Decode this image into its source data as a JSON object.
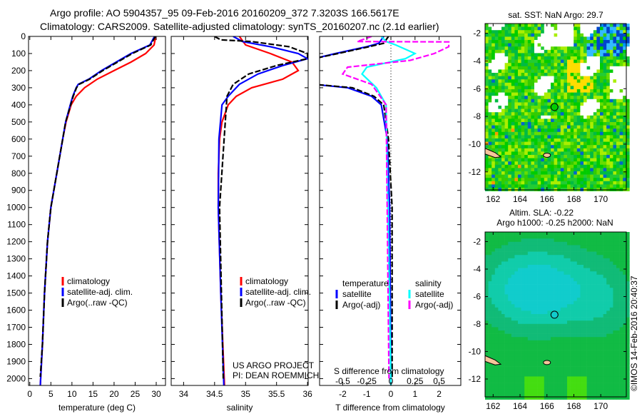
{
  "chart_data": {
    "title_line1": "Argo profile: AO 5904357_95 09-Feb-2016 20160209_372 7.3203S 166.5617E",
    "title_line2": "Climatology: CARS2009. Satellite-adjusted climatology: synTS_20160207.nc (2.1d earlier)",
    "depth_axis": {
      "ylim": [
        0,
        2040
      ],
      "ticks": [
        0,
        100,
        200,
        300,
        400,
        500,
        600,
        700,
        800,
        900,
        1000,
        1100,
        1200,
        1300,
        1400,
        1500,
        1600,
        1700,
        1800,
        1900,
        2000
      ]
    },
    "colors": {
      "climatology": "#ff0000",
      "satellite": "#0000ff",
      "argo": "#000000",
      "sat_s": "#00ffff",
      "argo_s": "#ff00ff"
    },
    "panels": [
      {
        "type": "line",
        "xlabel": "temperature (deg C)",
        "xlim": [
          -0.3,
          32.2
        ],
        "xticks": [
          0,
          5,
          10,
          15,
          20,
          25,
          30
        ],
        "legend": [
          "climatology",
          "satellite-adj. clim.",
          "Argo(..raw -QC)"
        ],
        "series": [
          {
            "name": "climatology",
            "color": "#ff0000",
            "dash": false,
            "points": [
              [
                0,
                29.9
              ],
              [
                50,
                29.5
              ],
              [
                100,
                27.5
              ],
              [
                150,
                24
              ],
              [
                200,
                20
              ],
              [
                250,
                16
              ],
              [
                300,
                13
              ],
              [
                350,
                11
              ],
              [
                400,
                9.8
              ],
              [
                500,
                8.6
              ],
              [
                600,
                7.8
              ],
              [
                800,
                6.4
              ],
              [
                1000,
                5
              ],
              [
                1200,
                4.2
              ],
              [
                1500,
                3.5
              ],
              [
                1800,
                3
              ],
              [
                2040,
                2.5
              ]
            ]
          },
          {
            "name": "satellite-adj. clim.",
            "color": "#0000ff",
            "dash": false,
            "points": [
              [
                0,
                29.6
              ],
              [
                50,
                28.5
              ],
              [
                100,
                24
              ],
              [
                150,
                20.5
              ],
              [
                200,
                17
              ],
              [
                250,
                14
              ],
              [
                280,
                11.5
              ],
              [
                300,
                11
              ],
              [
                350,
                10.2
              ],
              [
                400,
                9.6
              ],
              [
                500,
                8.5
              ],
              [
                600,
                7.8
              ],
              [
                800,
                6.4
              ],
              [
                1000,
                5
              ],
              [
                1200,
                4.2
              ],
              [
                1500,
                3.5
              ],
              [
                1800,
                3
              ],
              [
                2040,
                2.5
              ]
            ]
          },
          {
            "name": "Argo(..raw -QC)",
            "color": "#000000",
            "dash": true,
            "points": [
              [
                0,
                29.8
              ],
              [
                50,
                28.7
              ],
              [
                100,
                24.3
              ],
              [
                150,
                20.8
              ],
              [
                200,
                17.3
              ],
              [
                250,
                14.2
              ],
              [
                280,
                11.7
              ],
              [
                300,
                11.1
              ],
              [
                350,
                10.3
              ],
              [
                400,
                9.7
              ],
              [
                500,
                8.5
              ],
              [
                600,
                7.8
              ],
              [
                800,
                6.4
              ],
              [
                1000,
                5
              ],
              [
                1200,
                4.2
              ],
              [
                1500,
                3.5
              ],
              [
                1800,
                3
              ],
              [
                1990,
                2.5
              ]
            ]
          }
        ]
      },
      {
        "type": "line",
        "xlabel": "salinity",
        "xlim": [
          33.8,
          36.01
        ],
        "xticks": [
          34,
          34.5,
          35,
          35.5,
          36
        ],
        "legend": [
          "climatology",
          "satellite-adj. clim.",
          "Argo(..raw -QC)"
        ],
        "credit": [
          "US ARGO PROJECT",
          "PI: DEAN ROEMMICH"
        ],
        "series": [
          {
            "name": "climatology",
            "color": "#ff0000",
            "dash": false,
            "points": [
              [
                0,
                34.9
              ],
              [
                50,
                35.0
              ],
              [
                100,
                35.4
              ],
              [
                150,
                35.75
              ],
              [
                200,
                35.85
              ],
              [
                250,
                35.6
              ],
              [
                300,
                35.1
              ],
              [
                350,
                34.85
              ],
              [
                400,
                34.72
              ],
              [
                500,
                34.62
              ],
              [
                600,
                34.58
              ],
              [
                800,
                34.56
              ],
              [
                1000,
                34.56
              ],
              [
                1500,
                34.6
              ],
              [
                2040,
                34.66
              ]
            ]
          },
          {
            "name": "satellite-adj. clim.",
            "color": "#0000ff",
            "dash": false,
            "points": [
              [
                0,
                34.8
              ],
              [
                30,
                34.95
              ],
              [
                60,
                35.4
              ],
              [
                100,
                35.85
              ],
              [
                130,
                36.0
              ],
              [
                170,
                35.6
              ],
              [
                220,
                35.2
              ],
              [
                280,
                34.9
              ],
              [
                350,
                34.72
              ],
              [
                400,
                34.62
              ],
              [
                600,
                34.57
              ],
              [
                1000,
                34.56
              ],
              [
                1500,
                34.6
              ],
              [
                2040,
                34.65
              ]
            ]
          },
          {
            "name": "Argo(..raw -QC)",
            "color": "#000000",
            "dash": true,
            "points": [
              [
                0,
                34.5
              ],
              [
                20,
                34.6
              ],
              [
                30,
                35.1
              ],
              [
                60,
                35.7
              ],
              [
                100,
                36.0
              ],
              [
                130,
                36.0
              ],
              [
                170,
                35.5
              ],
              [
                220,
                35.05
              ],
              [
                280,
                34.8
              ],
              [
                350,
                34.7
              ],
              [
                1000,
                34.58
              ],
              [
                2000,
                34.64
              ]
            ]
          }
        ]
      },
      {
        "type": "line",
        "xlabel": "T difference from climatology",
        "xlabel2": "S difference from climatology",
        "xlim": [
          -2.96,
          2.9
        ],
        "xticks": [
          -2,
          -1,
          0,
          1,
          2
        ],
        "xticks2": [
          -0.5,
          -0.25,
          0,
          0.25,
          0.5
        ],
        "s_scale": 4,
        "legend_t": [
          "temperature",
          "satellite",
          "Argo(-adj)"
        ],
        "legend_s": [
          "salinity",
          "satellite",
          "Argo(-adj)"
        ],
        "series": [
          {
            "name": "T satellite",
            "color": "#0000ff",
            "dash": false,
            "scale": 1,
            "points": [
              [
                0,
                -0.3
              ],
              [
                40,
                -0.5
              ],
              [
                60,
                -1
              ],
              [
                100,
                -2.3
              ],
              [
                130,
                -3.2
              ],
              [
                280,
                -3.2
              ],
              [
                300,
                -1.8
              ],
              [
                350,
                -0.8
              ],
              [
                400,
                -0.4
              ],
              [
                600,
                -0.15
              ],
              [
                1000,
                -0.05
              ],
              [
                2040,
                0
              ]
            ]
          },
          {
            "name": "T Argo(-adj)",
            "color": "#000000",
            "dash": true,
            "scale": 1,
            "points": [
              [
                0,
                -0.1
              ],
              [
                40,
                -0.3
              ],
              [
                60,
                -0.9
              ],
              [
                100,
                -2.2
              ],
              [
                130,
                -3.2
              ],
              [
                280,
                -3.2
              ],
              [
                300,
                -1.6
              ],
              [
                350,
                -0.7
              ],
              [
                400,
                -0.3
              ],
              [
                600,
                -0.1
              ],
              [
                1000,
                0.05
              ],
              [
                2000,
                0.05
              ]
            ]
          },
          {
            "name": "S satellite",
            "color": "#00ffff",
            "dash": false,
            "scale": 4,
            "points": [
              [
                0,
                -0.1
              ],
              [
                30,
                -0.05
              ],
              [
                50,
                0.05
              ],
              [
                100,
                0.25
              ],
              [
                130,
                0.15
              ],
              [
                180,
                -0.25
              ],
              [
                220,
                -0.3
              ],
              [
                300,
                -0.15
              ],
              [
                400,
                -0.05
              ],
              [
                2040,
                0
              ]
            ]
          },
          {
            "name": "S Argo(-adj)",
            "color": "#ff00ff",
            "dash": true,
            "scale": 4,
            "points": [
              [
                0,
                -0.2
              ],
              [
                30,
                -0.35
              ],
              [
                32,
                0.6
              ],
              [
                60,
                0.6
              ],
              [
                100,
                0.45
              ],
              [
                140,
                0.2
              ],
              [
                180,
                -0.45
              ],
              [
                220,
                -0.5
              ],
              [
                280,
                -0.2
              ],
              [
                400,
                -0.05
              ],
              [
                2000,
                -0.02
              ]
            ]
          }
        ]
      }
    ],
    "maps": [
      {
        "title": "sat. SST: NaN Argo: 29.7",
        "lon": [
          161.4,
          171.9
        ],
        "lat": [
          -1.3,
          -13.3
        ],
        "xticks": [
          162,
          164,
          166,
          168,
          170
        ],
        "yticks": [
          -2,
          -4,
          -6,
          -8,
          -10,
          -12
        ],
        "argo_position": [
          166.56,
          -7.32
        ],
        "kind": "sst"
      },
      {
        "title": "Altim. SLA: -0.22",
        "title2": "Argo h1000: -0.25 h2000: NaN",
        "lon": [
          161.4,
          171.9
        ],
        "lat": [
          -1.3,
          -13.3
        ],
        "xticks": [
          162,
          164,
          166,
          168,
          170
        ],
        "yticks": [
          -2,
          -4,
          -6,
          -8,
          -10,
          -12
        ],
        "argo_position": [
          166.56,
          -7.32
        ],
        "kind": "sla"
      }
    ],
    "footer": "©IMOS 14-Feb-2016 20:40:37"
  }
}
